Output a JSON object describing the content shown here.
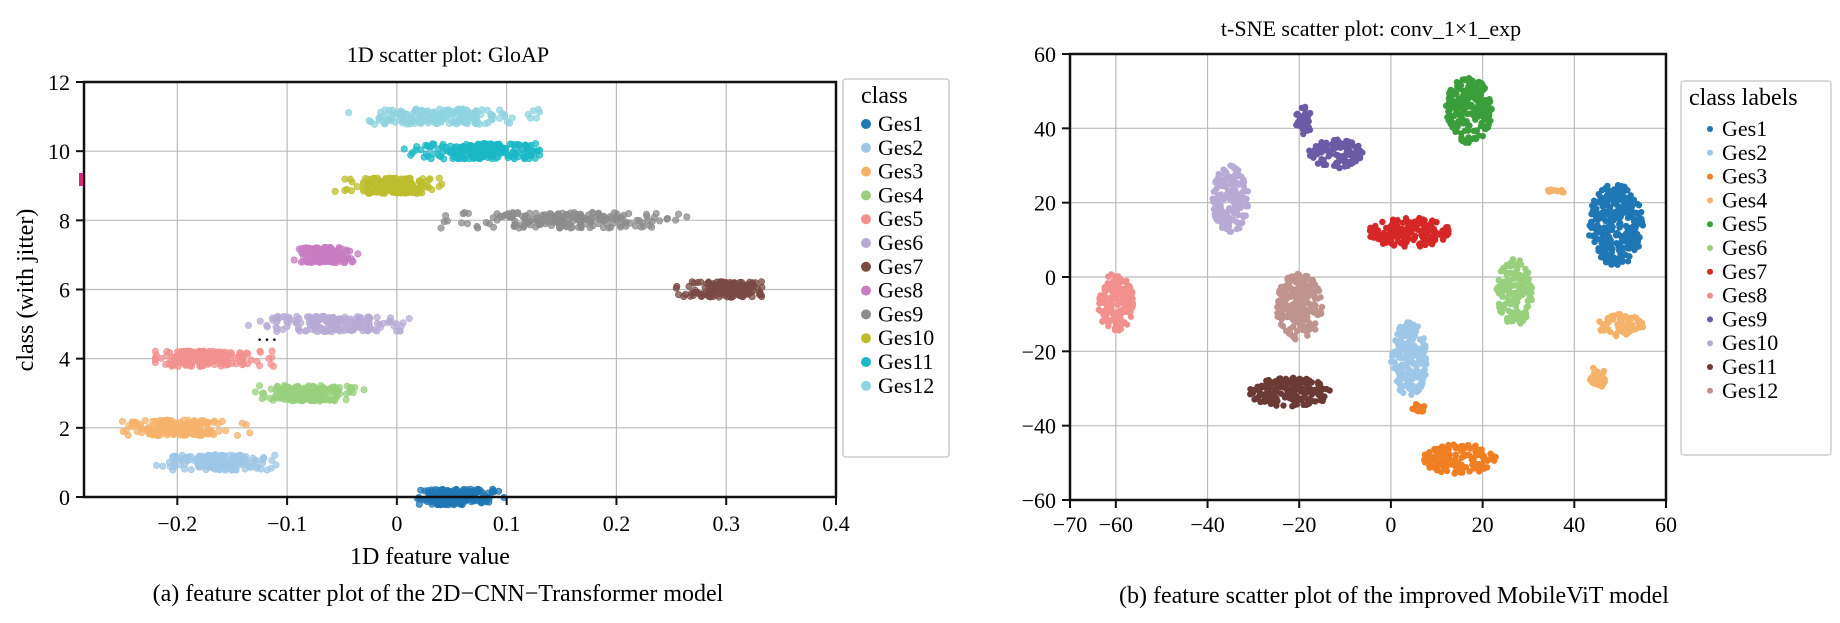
{
  "figure": {
    "caption_a": "(a) feature scatter plot of the 2D−CNN−Transformer model",
    "caption_b": "(b) feature scatter plot of the improved MobileViT model"
  },
  "colors": {
    "Ges1": "#1f77b4",
    "Ges2": "#9ec6e6",
    "Ges3": "#f5b26b",
    "Ges4": "#98d07e",
    "Ges5": "#f2908d",
    "Ges6": "#b7abd6",
    "Ges7": "#7a4a45",
    "Ges8": "#c77cc0",
    "Ges9": "#8c8c8c",
    "Ges10": "#bdbd2d",
    "Ges11": "#1bb8c7",
    "Ges12": "#8fd3e0",
    "tsne_Ges1": "#1f77b4",
    "tsne_Ges2": "#9ec6e6",
    "tsne_Ges3": "#f07e22",
    "tsne_Ges4": "#f5b26b",
    "tsne_Ges5": "#3a9e3a",
    "tsne_Ges6": "#98d07e",
    "tsne_Ges7": "#d62728",
    "tsne_Ges8": "#f2908d",
    "tsne_Ges9": "#6b5aa6",
    "tsne_Ges10": "#b7abd6",
    "tsne_Ges11": "#6b3a35",
    "tsne_Ges12": "#c0948e",
    "marker": "#d6267e"
  },
  "chart_data": [
    {
      "type": "scatter",
      "title": "1D scatter plot: GloAP",
      "xlabel": "1D feature value",
      "ylabel": "class (with jitter)",
      "xlim": [
        -0.285,
        0.4
      ],
      "ylim": [
        0,
        12
      ],
      "xticks": [
        -0.2,
        -0.1,
        0,
        0.1,
        0.2,
        0.3,
        0.4
      ],
      "xtick_labels": [
        "−0.2",
        "−0.1",
        "0",
        "0.1",
        "0.2",
        "0.3",
        "0.4"
      ],
      "yticks": [
        0,
        2,
        4,
        6,
        8,
        10,
        12
      ],
      "ytick_labels": [
        "0",
        "2",
        "4",
        "6",
        "8",
        "10",
        "12"
      ],
      "grid": true,
      "legend": {
        "title": "class",
        "placement": "outside-right",
        "entries": [
          "Ges1",
          "Ges2",
          "Ges3",
          "Ges4",
          "Ges5",
          "Ges6",
          "Ges7",
          "Ges8",
          "Ges9",
          "Ges10",
          "Ges11",
          "Ges12"
        ]
      },
      "annotation": "…",
      "series": [
        {
          "name": "Ges1",
          "y": 0,
          "x_range": [
            0.01,
            0.1
          ],
          "x_center": 0.055
        },
        {
          "name": "Ges2",
          "y": 1,
          "x_range": [
            -0.22,
            -0.11
          ],
          "x_center": -0.165
        },
        {
          "name": "Ges3",
          "y": 2,
          "x_range": [
            -0.26,
            -0.13
          ],
          "x_center": -0.205
        },
        {
          "name": "Ges4",
          "y": 3,
          "x_range": [
            -0.13,
            -0.03
          ],
          "x_center": -0.08
        },
        {
          "name": "Ges5",
          "y": 4,
          "x_range": [
            -0.22,
            -0.11
          ],
          "x_center": -0.175
        },
        {
          "name": "Ges6",
          "y": 5,
          "x_range": [
            -0.14,
            0.03
          ],
          "x_center": -0.055
        },
        {
          "name": "Ges7",
          "y": 6,
          "x_range": [
            0.25,
            0.335
          ],
          "x_center": 0.3
        },
        {
          "name": "Ges8",
          "y": 7,
          "x_range": [
            -0.095,
            -0.035
          ],
          "x_center": -0.065
        },
        {
          "name": "Ges9",
          "y": 8,
          "x_range": [
            0.035,
            0.265
          ],
          "x_center": 0.16
        },
        {
          "name": "Ges10",
          "y": 9,
          "x_range": [
            -0.06,
            0.045
          ],
          "x_center": -0.005
        },
        {
          "name": "Ges11",
          "y": 10,
          "x_range": [
            -0.015,
            0.13
          ],
          "x_center": 0.075
        },
        {
          "name": "Ges12",
          "y": 11,
          "x_range": [
            -0.045,
            0.145
          ],
          "x_center": 0.04
        }
      ]
    },
    {
      "type": "scatter",
      "title": "t-SNE scatter plot: conv_1×1_exp",
      "xlabel": "",
      "ylabel": "",
      "xlim": [
        -70,
        60
      ],
      "ylim": [
        -60,
        60
      ],
      "xticks": [
        -70,
        -60,
        -40,
        -20,
        0,
        20,
        40,
        60
      ],
      "xtick_labels": [
        "−70",
        "−60",
        "−40",
        "−20",
        "0",
        "20",
        "40",
        "60"
      ],
      "yticks": [
        -60,
        -40,
        -20,
        0,
        20,
        40,
        60
      ],
      "ytick_labels": [
        "−60",
        "−40",
        "−20",
        "0",
        "20",
        "40",
        "60"
      ],
      "grid": true,
      "legend": {
        "title": "class labels",
        "placement": "outside-right",
        "entries": [
          "Ges1",
          "Ges2",
          "Ges3",
          "Ges4",
          "Ges5",
          "Ges6",
          "Ges7",
          "Ges8",
          "Ges9",
          "Ges10",
          "Ges11",
          "Ges12"
        ]
      },
      "series": [
        {
          "name": "Ges1",
          "clusters": [
            {
              "cx": 49,
              "cy": 14,
              "rx": 6,
              "ry": 11
            }
          ]
        },
        {
          "name": "Ges2",
          "clusters": [
            {
              "cx": 4,
              "cy": -22,
              "rx": 4,
              "ry": 10
            }
          ]
        },
        {
          "name": "Ges3",
          "clusters": [
            {
              "cx": 15,
              "cy": -49,
              "rx": 8,
              "ry": 4
            },
            {
              "cx": 6,
              "cy": -35,
              "rx": 1.5,
              "ry": 1.5
            }
          ]
        },
        {
          "name": "Ges4",
          "clusters": [
            {
              "cx": 50,
              "cy": -13,
              "rx": 5,
              "ry": 3
            },
            {
              "cx": 45,
              "cy": -27,
              "rx": 2,
              "ry": 3
            },
            {
              "cx": 36,
              "cy": 23,
              "rx": 2,
              "ry": 0.7
            }
          ]
        },
        {
          "name": "Ges5",
          "clusters": [
            {
              "cx": 17,
              "cy": 45,
              "rx": 5,
              "ry": 9
            }
          ]
        },
        {
          "name": "Ges6",
          "clusters": [
            {
              "cx": 27,
              "cy": -4,
              "rx": 4,
              "ry": 9
            }
          ]
        },
        {
          "name": "Ges7",
          "clusters": [
            {
              "cx": 4,
              "cy": 12,
              "rx": 9,
              "ry": 4
            }
          ]
        },
        {
          "name": "Ges8",
          "clusters": [
            {
              "cx": -60,
              "cy": -7,
              "rx": 4,
              "ry": 8
            }
          ]
        },
        {
          "name": "Ges9",
          "clusters": [
            {
              "cx": -12,
              "cy": 33,
              "rx": 6,
              "ry": 4
            },
            {
              "cx": -19,
              "cy": 42,
              "rx": 2,
              "ry": 4
            }
          ]
        },
        {
          "name": "Ges10",
          "clusters": [
            {
              "cx": -35,
              "cy": 21,
              "rx": 4,
              "ry": 9
            }
          ]
        },
        {
          "name": "Ges11",
          "clusters": [
            {
              "cx": -22,
              "cy": -31,
              "rx": 9,
              "ry": 4
            }
          ]
        },
        {
          "name": "Ges12",
          "clusters": [
            {
              "cx": -20,
              "cy": -8,
              "rx": 5,
              "ry": 9
            }
          ]
        }
      ]
    }
  ]
}
